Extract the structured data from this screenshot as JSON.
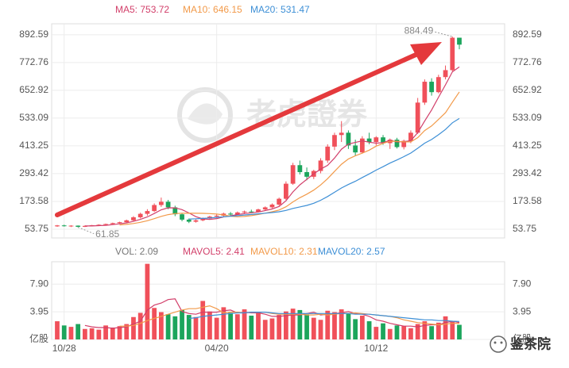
{
  "chart_data": [
    {
      "type": "candlestick",
      "categories": [
        null,
        "10/28",
        null,
        null,
        null,
        null,
        null,
        null,
        null,
        null,
        null,
        null,
        null,
        null,
        null,
        null,
        null,
        null,
        null,
        null,
        null,
        null,
        null,
        "04/20",
        null,
        null,
        null,
        null,
        null,
        null,
        null,
        null,
        null,
        null,
        null,
        null,
        null,
        null,
        null,
        null,
        null,
        null,
        null,
        null,
        null,
        null,
        "10/12",
        null,
        null,
        null,
        null,
        null,
        null,
        null,
        null,
        null,
        null,
        null,
        null
      ],
      "open": [
        66,
        70,
        67,
        69,
        64,
        68,
        71,
        73,
        76,
        80,
        84,
        92,
        105,
        120,
        132,
        158,
        172,
        148,
        118,
        95,
        86,
        92,
        100,
        108,
        112,
        121,
        117,
        126,
        130,
        128,
        139,
        148,
        160,
        185,
        250,
        330,
        300,
        280,
        305,
        350,
        410,
        460,
        470,
        415,
        385,
        445,
        430,
        450,
        425,
        440,
        408,
        435,
        470,
        600,
        690,
        645,
        710,
        740,
        880
      ],
      "high": [
        72,
        73,
        71,
        70,
        70,
        72,
        75,
        78,
        82,
        86,
        95,
        110,
        125,
        140,
        165,
        190,
        180,
        155,
        124,
        100,
        96,
        104,
        112,
        118,
        125,
        128,
        130,
        134,
        138,
        142,
        152,
        165,
        190,
        260,
        340,
        350,
        320,
        310,
        360,
        420,
        470,
        520,
        480,
        440,
        455,
        470,
        455,
        460,
        445,
        448,
        440,
        480,
        620,
        700,
        705,
        720,
        760,
        884.49,
        875
      ],
      "low": [
        64,
        65,
        63,
        61.85,
        63,
        66,
        68,
        70,
        74,
        77,
        82,
        88,
        100,
        112,
        128,
        150,
        140,
        110,
        88,
        80,
        82,
        88,
        95,
        102,
        108,
        113,
        115,
        120,
        124,
        126,
        135,
        144,
        155,
        180,
        245,
        290,
        265,
        270,
        295,
        340,
        395,
        430,
        400,
        370,
        380,
        420,
        415,
        418,
        400,
        402,
        398,
        425,
        465,
        590,
        630,
        640,
        700,
        735,
        830
      ],
      "close": [
        70,
        67,
        69,
        64,
        68,
        71,
        73,
        76,
        80,
        84,
        92,
        105,
        120,
        132,
        158,
        172,
        148,
        118,
        95,
        86,
        92,
        100,
        108,
        112,
        121,
        117,
        126,
        130,
        128,
        139,
        148,
        160,
        185,
        250,
        330,
        300,
        280,
        305,
        350,
        410,
        460,
        470,
        415,
        385,
        445,
        430,
        450,
        425,
        440,
        408,
        435,
        470,
        600,
        690,
        645,
        710,
        740,
        880,
        850
      ],
      "up_color": "#f0505a",
      "down_color": "#1ca55c",
      "ylim": [
        16,
        940
      ],
      "yticks": [
        53.75,
        173.58,
        293.42,
        413.25,
        533.09,
        652.92,
        772.76,
        892.59
      ],
      "grid": true,
      "watermark": "老虎證券",
      "series": [
        {
          "name": "MA5: 753.72",
          "color": "#d23f6a",
          "values": [
            null,
            null,
            null,
            null,
            67.6,
            67.8,
            69,
            70.4,
            73.6,
            76.8,
            81,
            87.4,
            96.2,
            106.6,
            121.4,
            137.4,
            146,
            145.6,
            138.2,
            123.8,
            107.8,
            98.2,
            96.2,
            99.6,
            106.6,
            111.6,
            116.8,
            121.2,
            124.4,
            128,
            134.2,
            141,
            152,
            176.4,
            214.6,
            245,
            269,
            293,
            313,
            329,
            361,
            399,
            421,
            428,
            435,
            429,
            425,
            427,
            438,
            430.6,
            431.6,
            435.6,
            470.6,
            520.6,
            568,
            623,
            677,
            733,
            753.72
          ]
        },
        {
          "name": "MA10: 646.15",
          "color": "#f29a4a",
          "values": [
            null,
            null,
            null,
            null,
            null,
            null,
            null,
            null,
            null,
            72.2,
            74.4,
            78.2,
            83.3,
            90.1,
            99.1,
            109.2,
            116.7,
            120.9,
            122.4,
            122.6,
            122.6,
            122.1,
            120.9,
            118.9,
            115.2,
            109.7,
            107.5,
            108.7,
            112,
            117.3,
            122.9,
            128.9,
            136.6,
            150.4,
            171.3,
            189.6,
            205,
            222.5,
            244.7,
            271.8,
            303,
            334,
            357,
            370.5,
            382,
            395,
            412,
            424,
            433,
            432.8,
            430.3,
            430.3,
            448.8,
            479.3,
            499.3,
            527.3,
            556.3,
            601.8,
            646.15
          ]
        },
        {
          "name": "MA20: 531.47",
          "color": "#3d8fd6",
          "values": [
            null,
            null,
            null,
            null,
            null,
            null,
            null,
            null,
            null,
            null,
            null,
            null,
            null,
            null,
            null,
            null,
            null,
            null,
            null,
            97.4,
            98.5,
            100.2,
            102.1,
            104.5,
            107.2,
            109.5,
            112.1,
            114.8,
            117.2,
            120,
            122.8,
            125.5,
            128.8,
            134.7,
            143.3,
            149.7,
            156.3,
            165.6,
            178.4,
            194.6,
            213,
            231.5,
            246.8,
            260.5,
            276.7,
            292.3,
            308.5,
            323.3,
            338.9,
            352.3,
            366.7,
            382.2,
            402.9,
            424.9,
            440.7,
            461.2,
            484.2,
            512.9,
            531.47
          ]
        }
      ]
    },
    {
      "type": "bar",
      "name": "VOL: 2.09",
      "values": [
        2.6,
        2.0,
        1.8,
        2.2,
        1.5,
        1.6,
        1.4,
        2.0,
        1.7,
        1.9,
        2.2,
        3.2,
        3.8,
        10.8,
        4.5,
        3.9,
        3.6,
        3.3,
        4.2,
        3.5,
        3.2,
        5.5,
        4.0,
        3.1,
        4.6,
        3.8,
        3.6,
        4.3,
        3.4,
        3.9,
        2.8,
        3.0,
        3.5,
        4.0,
        4.4,
        4.2,
        3.6,
        3.1,
        2.8,
        4.1,
        3.9,
        4.3,
        3.8,
        2.9,
        3.4,
        2.6,
        1.8,
        2.3,
        1.5,
        2.0,
        1.9,
        1.6,
        2.2,
        2.6,
        1.9,
        2.4,
        3.3,
        2.6,
        2.09
      ],
      "ylim": [
        0,
        11.1
      ],
      "yticks": [
        {
          "value": 0,
          "label": "亿股"
        },
        3.95,
        {
          "value": 7.9,
          "label": "7.90"
        }
      ],
      "series": [
        {
          "name": "MAVOL5: 2.41",
          "color": "#d23f6a",
          "values": [
            null,
            null,
            null,
            null,
            2.0,
            1.8,
            1.7,
            1.7,
            1.6,
            1.7,
            1.8,
            2.2,
            2.6,
            4.2,
            4.9,
            5.2,
            5.7,
            5.8,
            4.0,
            3.7,
            3.6,
            3.9,
            3.9,
            3.9,
            4.1,
            4.2,
            3.8,
            3.9,
            3.8,
            3.8,
            3.6,
            3.3,
            3.3,
            3.4,
            3.5,
            3.5,
            3.7,
            3.9,
            3.5,
            3.6,
            3.7,
            3.8,
            4.0,
            3.7,
            3.6,
            3.3,
            2.8,
            2.6,
            2.3,
            2.1,
            1.9,
            1.9,
            1.8,
            2.0,
            2.1,
            2.1,
            2.4,
            2.6,
            2.41
          ]
        },
        {
          "name": "MAVOL10: 2.31",
          "color": "#f29a4a",
          "values": [
            null,
            null,
            null,
            null,
            null,
            null,
            null,
            null,
            null,
            1.9,
            1.9,
            2.0,
            2.3,
            2.7,
            3.0,
            3.3,
            3.6,
            3.9,
            4.2,
            4.4,
            4.4,
            4.6,
            4.8,
            4.4,
            3.8,
            3.9,
            3.9,
            3.8,
            3.9,
            3.9,
            3.9,
            3.7,
            3.6,
            3.6,
            3.6,
            3.6,
            3.5,
            3.5,
            3.6,
            3.5,
            3.6,
            3.7,
            3.7,
            3.8,
            3.7,
            3.6,
            3.5,
            3.4,
            3.3,
            3.1,
            2.8,
            2.6,
            2.4,
            2.3,
            2.2,
            2.1,
            2.2,
            2.3,
            2.31
          ]
        },
        {
          "name": "MAVOL20: 2.57",
          "color": "#3d8fd6",
          "values": [
            null,
            null,
            null,
            null,
            null,
            null,
            null,
            null,
            null,
            null,
            null,
            null,
            null,
            null,
            null,
            null,
            null,
            null,
            null,
            3.0,
            3.1,
            3.3,
            3.4,
            3.5,
            3.6,
            3.7,
            3.8,
            3.8,
            3.9,
            3.9,
            3.9,
            3.8,
            3.7,
            3.7,
            3.7,
            3.7,
            3.7,
            3.7,
            3.7,
            3.7,
            3.7,
            3.7,
            3.7,
            3.6,
            3.6,
            3.6,
            3.5,
            3.4,
            3.3,
            3.2,
            3.1,
            3.0,
            2.9,
            2.8,
            2.8,
            2.7,
            2.7,
            2.6,
            2.57
          ]
        }
      ]
    }
  ],
  "watermark": "鉴茶院"
}
